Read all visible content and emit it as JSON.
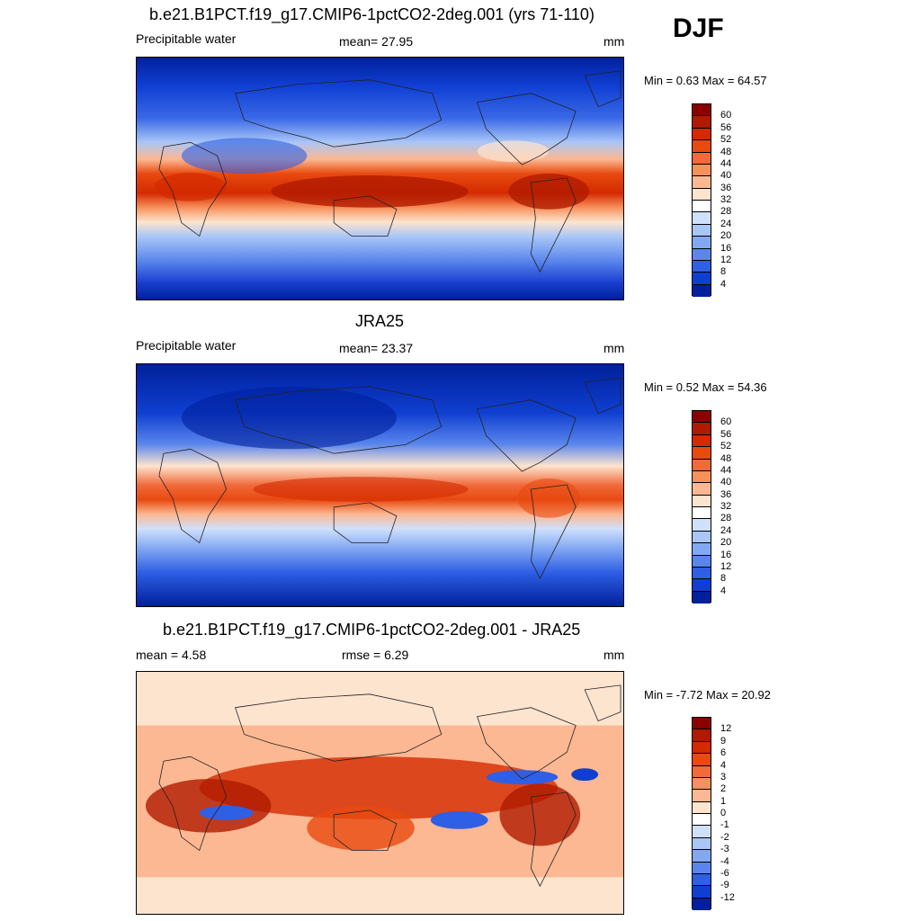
{
  "season": "DJF",
  "panels": [
    {
      "title": "b.e21.B1PCT.f19_g17.CMIP6-1pctCO2-2deg.001 (yrs 71-110)",
      "left_label": "Precipitable water",
      "center_label": "mean=  27.95",
      "units": "mm",
      "minmax": "Min =   0.63 Max =  64.57",
      "colorbar_labels": [
        "60",
        "56",
        "52",
        "48",
        "44",
        "40",
        "36",
        "32",
        "28",
        "24",
        "20",
        "16",
        "12",
        "8",
        "4"
      ],
      "colorbar_colors": [
        "#8b0000",
        "#b01a00",
        "#d42a00",
        "#e84a10",
        "#f06a3a",
        "#f8905c",
        "#fcb892",
        "#fde4cf",
        "#ffffff",
        "#cfe0fb",
        "#a9c6f7",
        "#83a8f2",
        "#5a86ec",
        "#2f5fe4",
        "#0f3fd0",
        "#00209c"
      ],
      "map_variant": "model"
    },
    {
      "title": "JRA25",
      "left_label": "Precipitable water",
      "center_label": "mean=  23.37",
      "units": "mm",
      "minmax": "Min =   0.52 Max =  54.36",
      "colorbar_labels": [
        "60",
        "56",
        "52",
        "48",
        "44",
        "40",
        "36",
        "32",
        "28",
        "24",
        "20",
        "16",
        "12",
        "8",
        "4"
      ],
      "colorbar_colors": [
        "#8b0000",
        "#b01a00",
        "#d42a00",
        "#e84a10",
        "#f06a3a",
        "#f8905c",
        "#fcb892",
        "#fde4cf",
        "#ffffff",
        "#cfe0fb",
        "#a9c6f7",
        "#83a8f2",
        "#5a86ec",
        "#2f5fe4",
        "#0f3fd0",
        "#00209c"
      ],
      "map_variant": "obs"
    },
    {
      "title": "b.e21.B1PCT.f19_g17.CMIP6-1pctCO2-2deg.001 - JRA25",
      "left_label": "mean =   4.58",
      "center_label": "rmse =   6.29",
      "units": "mm",
      "minmax": "Min =  -7.72 Max =  20.92",
      "colorbar_labels": [
        "12",
        "9",
        "6",
        "4",
        "3",
        "2",
        "1",
        "0",
        "-1",
        "-2",
        "-3",
        "-4",
        "-6",
        "-9",
        "-12"
      ],
      "colorbar_colors": [
        "#8b0000",
        "#b01a00",
        "#d42a00",
        "#e84a10",
        "#f06a3a",
        "#f8905c",
        "#fcb892",
        "#fde4cf",
        "#ffffff",
        "#cfe0fb",
        "#a9c6f7",
        "#83a8f2",
        "#5a86ec",
        "#2f5fe4",
        "#0f3fd0",
        "#00209c"
      ],
      "map_variant": "diff"
    }
  ]
}
